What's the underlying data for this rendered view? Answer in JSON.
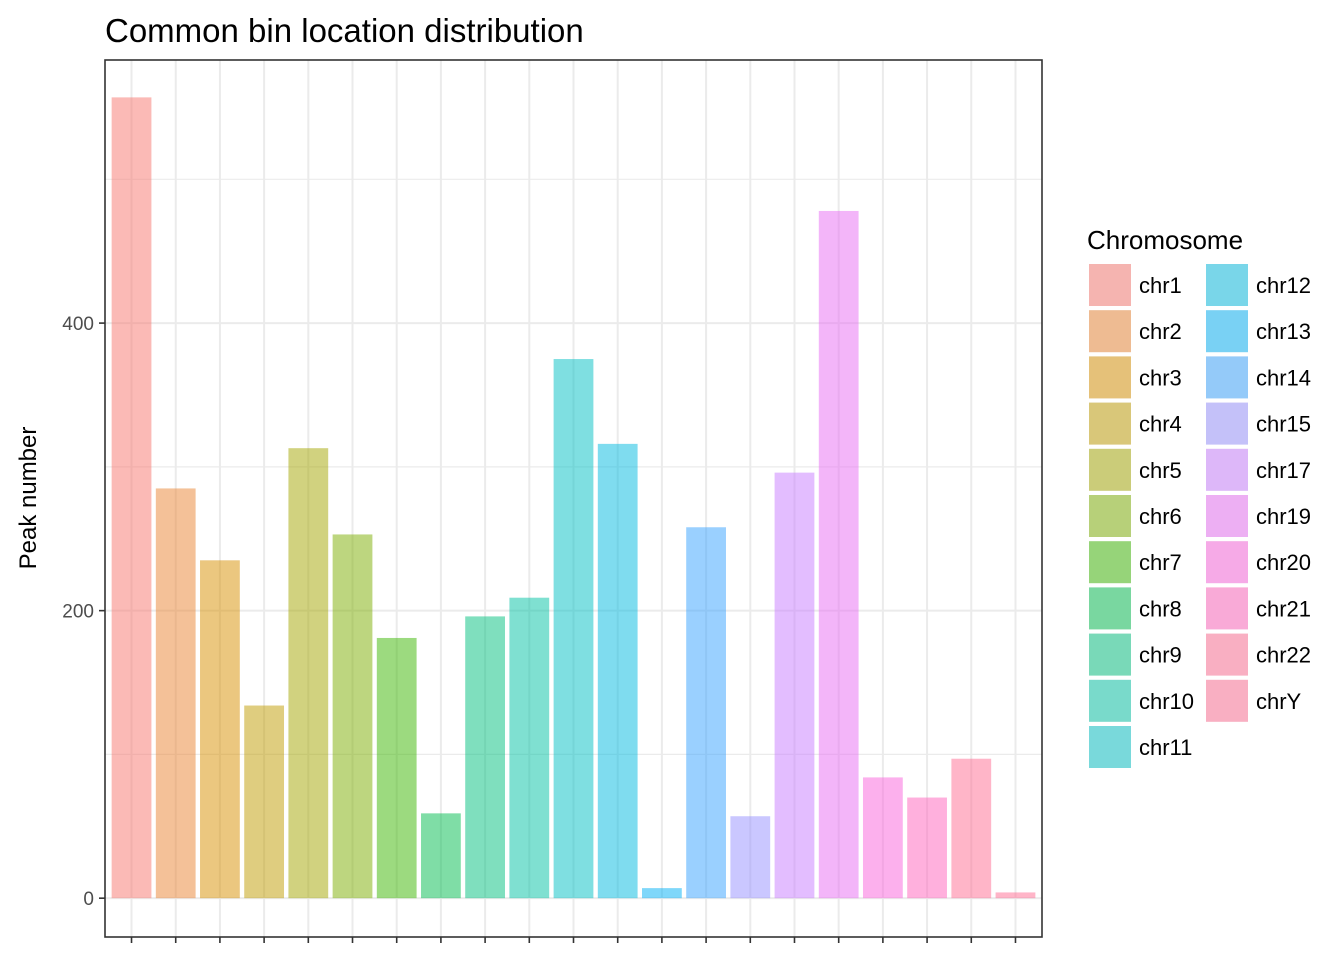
{
  "chart_data": {
    "type": "bar",
    "title": "Common bin location distribution",
    "xlabel": "",
    "ylabel": "Peak number",
    "ylim": [
      -27,
      583
    ],
    "yticks": [
      0,
      200,
      400
    ],
    "grid": true,
    "legend": {
      "title": "Chromosome",
      "position": "right"
    },
    "categories": [
      "chr1",
      "chr2",
      "chr3",
      "chr4",
      "chr5",
      "chr6",
      "chr7",
      "chr8",
      "chr9",
      "chr10",
      "chr11",
      "chr12",
      "chr13",
      "chr14",
      "chr15",
      "chr17",
      "chr19",
      "chr20",
      "chr21",
      "chr22",
      "chrY"
    ],
    "values": [
      557,
      285,
      235,
      134,
      313,
      253,
      181,
      59,
      196,
      209,
      375,
      316,
      7,
      258,
      57,
      296,
      478,
      84,
      70,
      97,
      4
    ],
    "colors": [
      "#F8766D",
      "#EA8331",
      "#D89000",
      "#C09B00",
      "#A3A500",
      "#7CAE00",
      "#39B600",
      "#00BB4E",
      "#00BF7D",
      "#00C1A3",
      "#00BFC4",
      "#00BAE0",
      "#00B0F6",
      "#35A2FF",
      "#9590FF",
      "#C77CFF",
      "#E76BF3",
      "#FA62DB",
      "#FF62BC",
      "#FF6C91",
      "#FF6C91"
    ]
  }
}
